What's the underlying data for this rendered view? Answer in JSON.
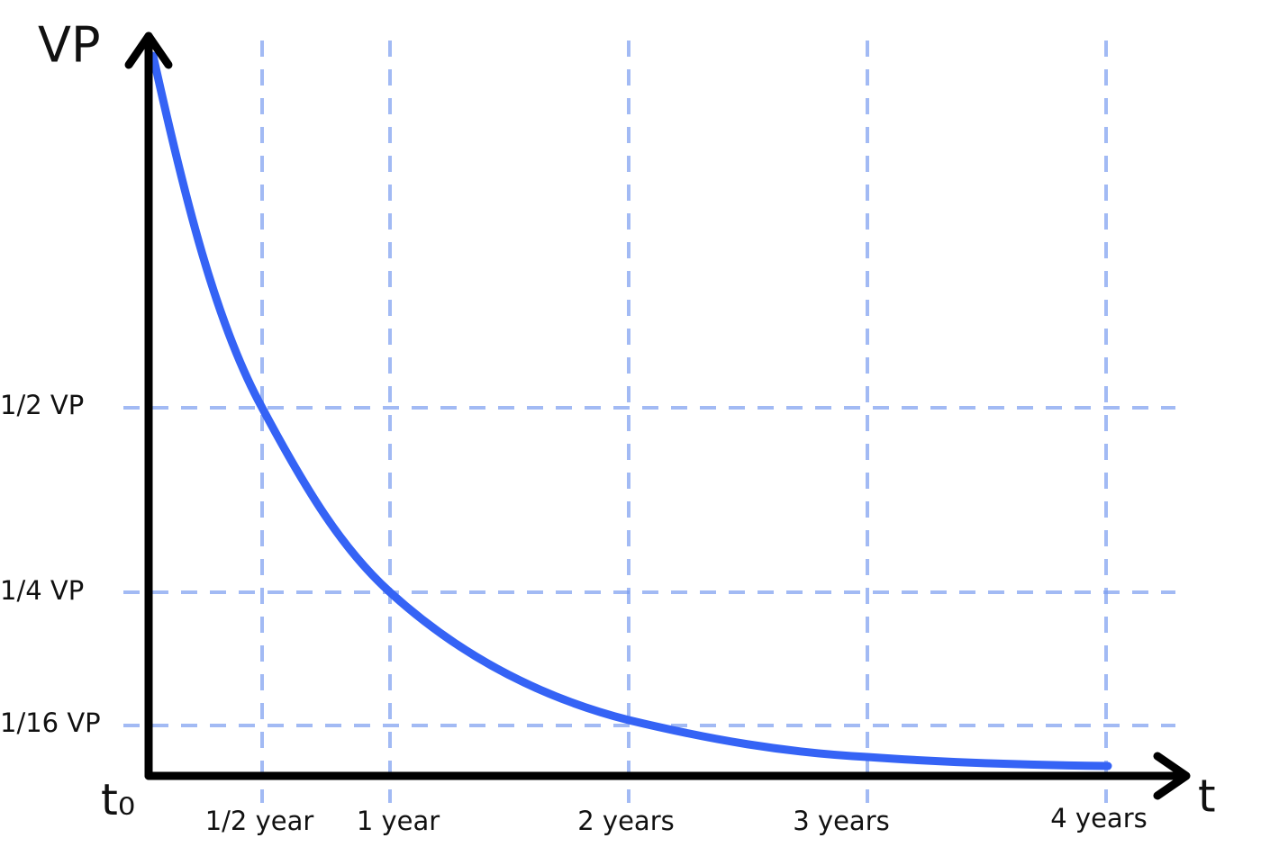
{
  "axes": {
    "y_label": "VP",
    "x_label": "t",
    "origin_label": "t₀"
  },
  "y_ticks": [
    "1/2 VP",
    "1/4 VP",
    "1/16 VP"
  ],
  "x_ticks": [
    "1/2 year",
    "1 year",
    "2 years",
    "3 years",
    "4 years"
  ]
}
